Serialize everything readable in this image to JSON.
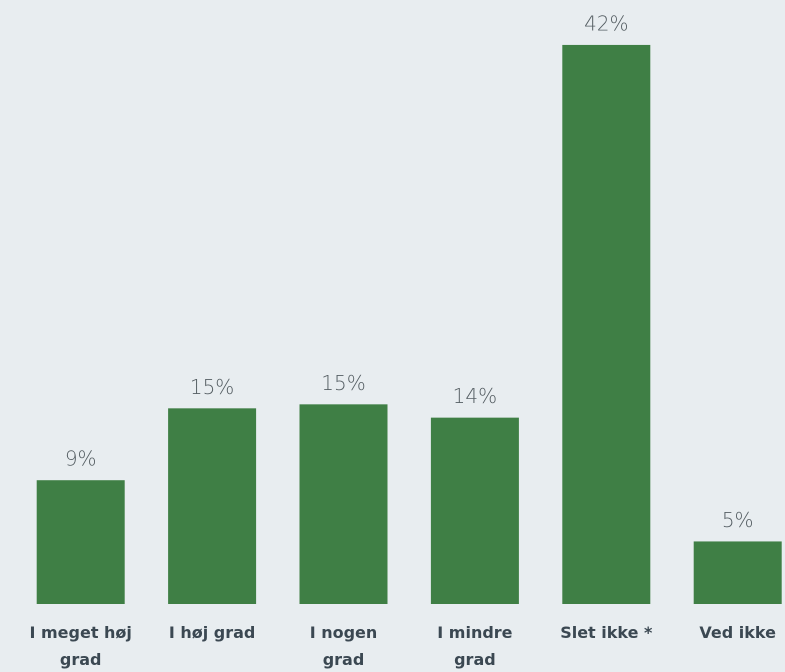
{
  "chart_data": {
    "type": "bar",
    "categories": [
      "I meget høj grad",
      "I høj grad",
      "I nogen grad",
      "I mindre grad",
      "Slet ikke *",
      "Ved ikke"
    ],
    "values": [
      9.3,
      14.7,
      15,
      14,
      42,
      4.7
    ],
    "value_labels": [
      "9%",
      "15%",
      "15%",
      "14%",
      "42%",
      "5%"
    ],
    "color": "#3f7f45",
    "ylim": [
      0,
      45
    ]
  }
}
